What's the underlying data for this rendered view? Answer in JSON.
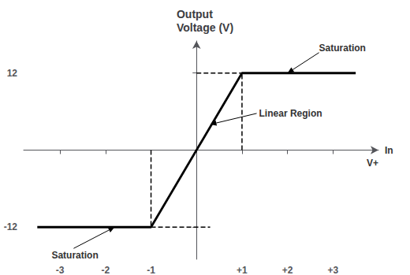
{
  "chart_data": {
    "type": "line",
    "title": "Output\nVoltage (V)",
    "xlabel": "In",
    "series": [
      {
        "x": [
          -3.5,
          -1,
          1,
          3.5
        ],
        "values": [
          -12,
          -12,
          12,
          12
        ],
        "color": "#000000",
        "line_style": "solid"
      },
      {
        "x": [
          -1,
          -1
        ],
        "values": [
          0,
          -12
        ],
        "color": "#000000",
        "line_style": "dashed"
      },
      {
        "x": [
          1,
          1
        ],
        "values": [
          0,
          12
        ],
        "color": "#000000",
        "line_style": "dashed"
      },
      {
        "x": [
          0,
          1
        ],
        "values": [
          12,
          12
        ],
        "color": "#000000",
        "line_style": "dashed"
      },
      {
        "x": [
          -1,
          0.3
        ],
        "values": [
          -12,
          -12
        ],
        "color": "#000000",
        "line_style": "dashed"
      }
    ],
    "xlim": [
      -3.8,
      4.0
    ],
    "ylim": [
      -17,
      17
    ],
    "xticks": [
      -3,
      -2,
      -1,
      {
        "value": 1,
        "label": "+1"
      },
      {
        "value": 2,
        "label": "+2"
      },
      {
        "value": 3,
        "label": "+3"
      }
    ],
    "yticks": [
      -12,
      12
    ],
    "grid": false,
    "annotations": [
      {
        "text": "V+"
      },
      {
        "text": "Saturation",
        "x": 2.0,
        "y": 12
      },
      {
        "text": "Linear Region",
        "x": 0.3,
        "y": 4.0
      },
      {
        "text": "Saturation",
        "x": -1.8,
        "y": -12
      }
    ]
  }
}
